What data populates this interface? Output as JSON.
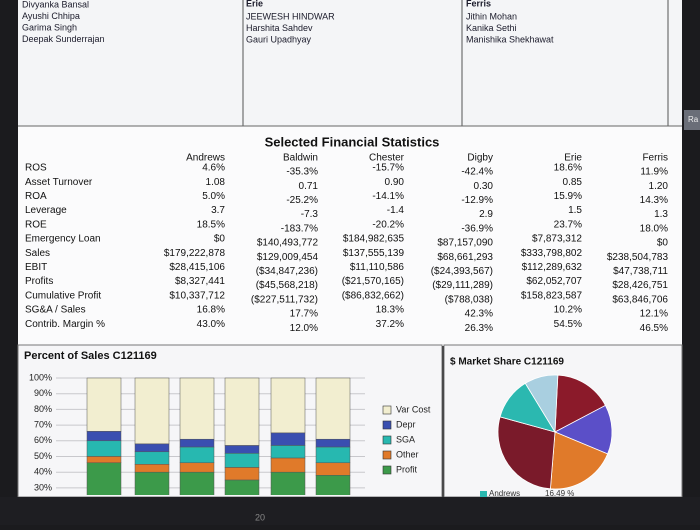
{
  "teams": [
    {
      "name": null,
      "members": [
        "Divyanka Bansal",
        "Ayushi Chhipa",
        "Garima Singh",
        "Deepak Sunderrajan"
      ]
    },
    {
      "name": "Erie",
      "members": [
        "JEEWESH HINDWAR",
        "Harshita Sahdev",
        "Gauri Upadhyay"
      ]
    },
    {
      "name": "Ferris",
      "members": [
        "Jithin Mohan",
        "Kanika Sethi",
        "Manishika Shekhawat"
      ]
    }
  ],
  "side_tab": "Ra",
  "financial": {
    "title": "Selected Financial Statistics",
    "columns": [
      "Andrews",
      "Baldwin",
      "Chester",
      "Digby",
      "Erie",
      "Ferris"
    ],
    "rows": [
      {
        "label": "ROS",
        "cells": [
          "4.6%",
          "-35.3%",
          "-15.7%",
          "-42.4%",
          "18.6%",
          "11.9%"
        ]
      },
      {
        "label": "Asset Turnover",
        "cells": [
          "1.08",
          "0.71",
          "0.90",
          "0.30",
          "0.85",
          "1.20"
        ]
      },
      {
        "label": "ROA",
        "cells": [
          "5.0%",
          "-25.2%",
          "-14.1%",
          "-12.9%",
          "15.9%",
          "14.3%"
        ]
      },
      {
        "label": "Leverage",
        "cells": [
          "3.7",
          "-7.3",
          "-1.4",
          "2.9",
          "1.5",
          "1.3"
        ]
      },
      {
        "label": "ROE",
        "cells": [
          "18.5%",
          "-183.7%",
          "-20.2%",
          "-36.9%",
          "23.7%",
          "18.0%"
        ]
      },
      {
        "label": "Emergency Loan",
        "cells": [
          "$0",
          "$140,493,772",
          "$184,982,635",
          "$87,157,090",
          "$7,873,312",
          "$0"
        ]
      },
      {
        "label": "Sales",
        "cells": [
          "$179,222,878",
          "$129,009,454",
          "$137,555,139",
          "$68,661,293",
          "$333,798,802",
          "$238,504,783"
        ]
      },
      {
        "label": "EBIT",
        "cells": [
          "$28,415,106",
          "($34,847,236)",
          "$11,110,586",
          "($24,393,567)",
          "$112,289,632",
          "$47,738,711"
        ]
      },
      {
        "label": "Profits",
        "cells": [
          "$8,327,441",
          "($45,568,218)",
          "($21,570,165)",
          "($29,111,289)",
          "$62,052,707",
          "$28,426,751"
        ]
      },
      {
        "label": "Cumulative Profit",
        "cells": [
          "$10,337,712",
          "($227,511,732)",
          "($86,832,662)",
          "($788,038)",
          "$158,823,587",
          "$63,846,706"
        ]
      },
      {
        "label": "SG&A / Sales",
        "cells": [
          "16.8%",
          "17.7%",
          "18.3%",
          "42.3%",
          "10.2%",
          "12.1%"
        ]
      },
      {
        "label": "Contrib. Margin %",
        "cells": [
          "43.0%",
          "12.0%",
          "37.2%",
          "26.3%",
          "54.5%",
          "46.5%"
        ]
      }
    ]
  },
  "chart_data": [
    {
      "type": "stacked_bar",
      "title": "Percent of Sales C121169",
      "categories": [
        null,
        null,
        null,
        null,
        null,
        null
      ],
      "series": [
        {
          "name": "Var Cost",
          "color": "#f2eed0",
          "values": [
            34,
            42,
            39,
            43,
            35,
            39
          ]
        },
        {
          "name": "Depr",
          "color": "#3a4fb0",
          "values": [
            6,
            5,
            5,
            5,
            8,
            5
          ]
        },
        {
          "name": "SGA",
          "color": "#27b8b0",
          "values": [
            10,
            8,
            10,
            9,
            8,
            10
          ]
        },
        {
          "name": "Other",
          "color": "#e07a2a",
          "values": [
            4,
            5,
            6,
            8,
            9,
            8
          ]
        },
        {
          "name": "Profit",
          "color": "#3c9a4a",
          "values": [
            46,
            40,
            40,
            35,
            40,
            38
          ]
        }
      ],
      "ylim": [
        0,
        100
      ],
      "yticks": [
        {
          "value": 100,
          "label": "100%"
        },
        {
          "value": 90,
          "label": "90%"
        },
        {
          "value": 80,
          "label": "80%"
        },
        {
          "value": 70,
          "label": "70%"
        },
        {
          "value": 60,
          "label": "60%"
        },
        {
          "value": 50,
          "label": "50%"
        },
        {
          "value": 40,
          "label": "40%"
        },
        {
          "value": 30,
          "label": "30%"
        }
      ],
      "grid": true
    },
    {
      "type": "pie",
      "title": "$ Market Share C121169",
      "categories": [
        "Andrews",
        null,
        null,
        null,
        null,
        null
      ],
      "values": [
        16.49,
        14,
        20,
        28,
        12,
        9.51
      ],
      "value_labels": [
        "16.49 %",
        null,
        null,
        null,
        null,
        null
      ],
      "colors": [
        "#8b1a2a",
        "#5b4fc8",
        "#e07a2a",
        "#7a1a2a",
        "#2bb8b0",
        "#a9cfe0"
      ]
    }
  ],
  "footer": "20"
}
